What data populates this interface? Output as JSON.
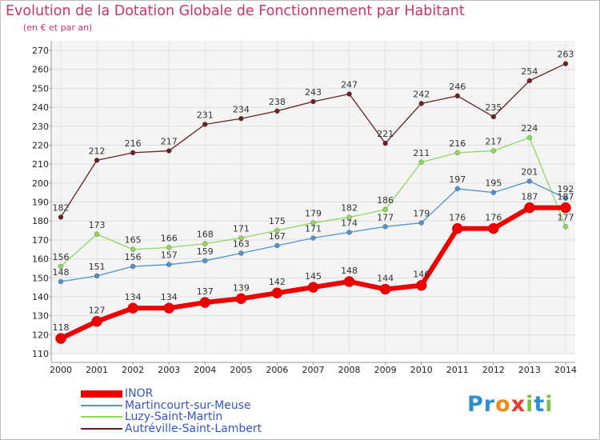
{
  "title": "Evolution de la Dotation Globale de Fonctionnement par Habitant",
  "subtitle": "(en € et par an)",
  "brand": {
    "text": "Proxiti",
    "letters": [
      "P",
      "r",
      "o",
      "x",
      "i",
      "t",
      "i"
    ],
    "letter_colors": [
      "#2b8fd6",
      "#2b8fd6",
      "#f08a1c",
      "#e63c2f",
      "#7cc242",
      "#2b8fd6",
      "#7cc242"
    ]
  },
  "chart_data": {
    "type": "line",
    "title": "Evolution de la Dotation Globale de Fonctionnement par Habitant",
    "subtitle": "(en € et par an)",
    "x": [
      2000,
      2001,
      2002,
      2003,
      2004,
      2005,
      2006,
      2007,
      2008,
      2009,
      2010,
      2011,
      2012,
      2013,
      2014
    ],
    "x_tick_labels": [
      "2000",
      "2001",
      "2002",
      "2003",
      "2004",
      "2005",
      "2006",
      "2007",
      "2008",
      "2009",
      "2010",
      "2011",
      "2012",
      "2013",
      "2014"
    ],
    "ylim": [
      110,
      270
    ],
    "y_ticks": [
      110,
      120,
      130,
      140,
      150,
      160,
      170,
      180,
      190,
      200,
      210,
      220,
      230,
      240,
      250,
      260,
      270
    ],
    "y_tick_labels": [
      "110",
      "120",
      "130",
      "140",
      "150",
      "160",
      "170",
      "180",
      "190",
      "200",
      "210",
      "220",
      "230",
      "240",
      "250",
      "260",
      "270"
    ],
    "grid": true,
    "legend_position": "bottom-left",
    "series": [
      {
        "name": "INOR",
        "color": "#ee0000",
        "values": [
          118,
          127,
          134,
          134,
          137,
          139,
          142,
          145,
          148,
          144,
          146,
          176,
          176,
          187,
          187
        ],
        "labels": [
          "118",
          "127",
          "134",
          "134",
          "137",
          "139",
          "142",
          "145",
          "148",
          "144",
          "146",
          "176",
          "176",
          "187",
          "187"
        ]
      },
      {
        "name": "Martincourt-sur-Meuse",
        "color": "#4f93cf",
        "values": [
          148,
          151,
          156,
          157,
          159,
          163,
          167,
          171,
          174,
          177,
          179,
          197,
          195,
          201,
          192
        ],
        "labels": [
          "148",
          "151",
          "156",
          "157",
          "159",
          "163",
          "167",
          "171",
          "174",
          "177",
          "179",
          "197",
          "195",
          "201",
          "192"
        ]
      },
      {
        "name": "Luzy-Saint-Martin",
        "color": "#8ed85c",
        "values": [
          156,
          173,
          165,
          166,
          168,
          171,
          175,
          179,
          182,
          186,
          211,
          216,
          217,
          224,
          177
        ],
        "labels": [
          "156",
          "173",
          "165",
          "166",
          "168",
          "171",
          "175",
          "179",
          "182",
          "186",
          "211",
          "216",
          "217",
          "224",
          "177"
        ]
      },
      {
        "name": "Autréville-Saint-Lambert",
        "color": "#6b2020",
        "values": [
          182,
          212,
          216,
          217,
          231,
          234,
          238,
          243,
          247,
          221,
          242,
          246,
          235,
          254,
          263
        ],
        "labels": [
          "182",
          "212",
          "216",
          "217",
          "231",
          "234",
          "238",
          "243",
          "247",
          "221",
          "242",
          "246",
          "235",
          "254",
          "263"
        ]
      }
    ]
  }
}
